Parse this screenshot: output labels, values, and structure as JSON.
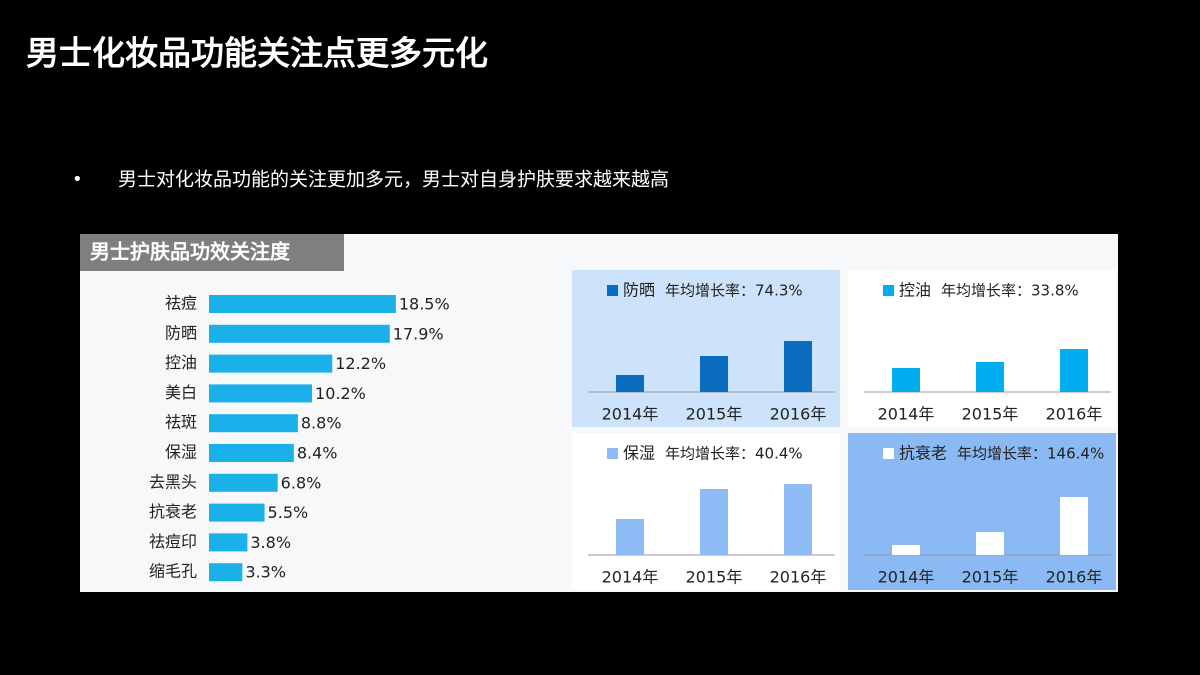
{
  "title": "男士化妆品功能关注点更多元化",
  "bullet": "男士对化妆品功能的关注更加多元，男士对自身护肤要求越来越高",
  "chart_data": [
    {
      "type": "hbar",
      "title": "男士护肤品功效关注度",
      "color": "#1ab0ea",
      "categories": [
        "祛痘",
        "防晒",
        "控油",
        "美白",
        "祛斑",
        "保湿",
        "去黑头",
        "抗衰老",
        "祛痘印",
        "缩毛孔"
      ],
      "values": [
        18.5,
        17.9,
        12.2,
        10.2,
        8.8,
        8.4,
        6.8,
        5.5,
        3.8,
        3.3
      ],
      "value_labels": [
        "18.5%",
        "17.9%",
        "12.2%",
        "10.2%",
        "8.8%",
        "8.4%",
        "6.8%",
        "5.5%",
        "3.8%",
        "3.3%"
      ]
    },
    {
      "type": "bar",
      "background": "#cde3fb",
      "annotation": "年均增长率：74.3%",
      "categories": [
        "2014年",
        "2015年",
        "2016年"
      ],
      "series": [
        {
          "name": "防晒",
          "color": "#0a6cbf",
          "values": [
            17,
            36,
            51
          ]
        }
      ]
    },
    {
      "type": "bar",
      "background": "#ffffff",
      "annotation": "年均增长率：33.8%",
      "categories": [
        "2014年",
        "2015年",
        "2016年"
      ],
      "series": [
        {
          "name": "控油",
          "color": "#00aeef",
          "values": [
            24,
            30,
            43
          ]
        }
      ]
    },
    {
      "type": "bar",
      "background": "#ffffff",
      "annotation": "年均增长率：40.4%",
      "categories": [
        "2014年",
        "2015年",
        "2016年"
      ],
      "series": [
        {
          "name": "保湿",
          "color": "#8dbbf5",
          "values": [
            36,
            66,
            71
          ]
        }
      ]
    },
    {
      "type": "bar",
      "background": "#8bb9f4",
      "annotation": "年均增长率：146.4%",
      "categories": [
        "2014年",
        "2015年",
        "2016年"
      ],
      "series": [
        {
          "name": "抗衰老",
          "color": "#ffffff",
          "values": [
            10,
            23,
            58
          ]
        }
      ]
    }
  ]
}
